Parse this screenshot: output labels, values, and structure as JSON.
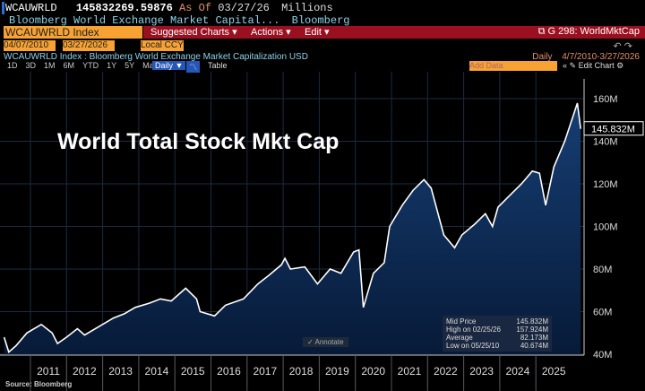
{
  "header": {
    "ticker": "WCAUWRLD",
    "value": "145832269.59876",
    "as_of_label": "As Of",
    "as_of_date": "03/27/26",
    "units": "Millions",
    "description": "Bloomberg World Exchange Market Capital...",
    "source_short": "Bloomberg"
  },
  "toolbar": {
    "security": "WCAUWRLD Index",
    "suggested": "Suggested Charts",
    "actions": "Actions",
    "edit": "Edit",
    "chart_id": "G 298: WorldMktCap"
  },
  "range": {
    "start": "04/07/2010",
    "end": "03/27/2026",
    "currency": "Local CCY"
  },
  "subtitle": "WCAUWRLD Index : Bloomberg World Exchange Market Capitalization USD",
  "periodicity": "Daily",
  "period_range": "4/7/2010-3/27/2026",
  "periods": [
    "1D",
    "3D",
    "1M",
    "6M",
    "YTD",
    "1Y",
    "5Y",
    "Max"
  ],
  "daily_label": "Daily ▼",
  "table_label": "Table",
  "add_data": "Add Data",
  "edit_chart": "Edit Chart",
  "annotate": "Annotate",
  "source": "Source: Bloomberg",
  "colors": {
    "line": "#ffffff",
    "fill": "#0d2d5a",
    "accent": "#f7a233",
    "toolbar": "#9b1020"
  },
  "chart_data": {
    "type": "area",
    "title": "World Total Stock Mkt Cap",
    "ylim": [
      33,
      165
    ],
    "y_ticks": [
      "40M",
      "60M",
      "80M",
      "100M",
      "120M",
      "140M",
      "160M"
    ],
    "y_tick_values": [
      40,
      60,
      80,
      100,
      120,
      140,
      160
    ],
    "x_ticks": [
      "2011",
      "2012",
      "2013",
      "2014",
      "2015",
      "2016",
      "2017",
      "2018",
      "2019",
      "2020",
      "2021",
      "2022",
      "2023",
      "2024",
      "2025"
    ],
    "last_value_label": "145.832M",
    "x": [
      2010.27,
      2010.4,
      2010.6,
      2010.9,
      2011.3,
      2011.6,
      2011.75,
      2012.0,
      2012.3,
      2012.5,
      2012.9,
      2013.3,
      2013.6,
      2013.9,
      2014.3,
      2014.6,
      2014.9,
      2015.3,
      2015.6,
      2015.7,
      2016.1,
      2016.4,
      2016.9,
      2017.3,
      2017.6,
      2017.95,
      2018.05,
      2018.2,
      2018.6,
      2018.95,
      2019.3,
      2019.6,
      2019.95,
      2020.1,
      2020.22,
      2020.5,
      2020.8,
      2020.95,
      2021.3,
      2021.6,
      2021.9,
      2022.1,
      2022.45,
      2022.75,
      2022.95,
      2023.3,
      2023.6,
      2023.8,
      2023.95,
      2024.3,
      2024.6,
      2024.9,
      2025.1,
      2025.27,
      2025.5,
      2025.8,
      2026.15,
      2026.24
    ],
    "values": [
      48,
      41,
      44,
      50,
      54,
      50,
      45,
      48,
      52,
      49,
      53,
      57,
      59,
      62,
      64,
      66,
      65,
      71,
      66,
      60,
      58,
      63,
      66,
      73,
      77,
      82,
      85,
      80,
      81,
      73,
      80,
      78,
      88,
      89,
      62,
      78,
      83,
      100,
      110,
      117,
      122,
      118,
      96,
      90,
      96,
      101,
      106,
      100,
      109,
      115,
      120,
      126,
      125,
      110,
      128,
      140,
      157.9,
      145.8
    ],
    "legend": [
      {
        "label": "Mid Price",
        "value": "145.832M"
      },
      {
        "label": "High on 02/25/26",
        "value": "157.924M"
      },
      {
        "label": "Average",
        "value": "82.173M"
      },
      {
        "label": "Low on 05/25/10",
        "value": "40.674M"
      }
    ]
  }
}
